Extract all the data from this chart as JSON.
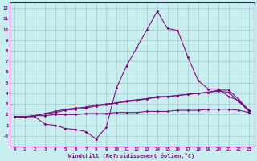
{
  "xlabel": "Windchill (Refroidissement éolien,°C)",
  "bg_color": "#c8eef0",
  "line_color": "#800080",
  "grid_color": "#a0c8d0",
  "xlim": [
    -0.5,
    23.5
  ],
  "ylim": [
    -1.0,
    12.5
  ],
  "xtick_labels": [
    "0",
    "1",
    "2",
    "3",
    "4",
    "5",
    "6",
    "7",
    "8",
    "9",
    "10",
    "11",
    "12",
    "13",
    "14",
    "15",
    "16",
    "17",
    "18",
    "19",
    "20",
    "21",
    "22",
    "23"
  ],
  "ytick_labels": [
    "-0",
    "1",
    "2",
    "3",
    "4",
    "5",
    "6",
    "7",
    "8",
    "9",
    "10",
    "11",
    "12"
  ],
  "ytick_vals": [
    0,
    1,
    2,
    3,
    4,
    5,
    6,
    7,
    8,
    9,
    10,
    11,
    12
  ],
  "series": [
    [
      1.8,
      1.8,
      1.8,
      1.1,
      1.0,
      0.7,
      0.6,
      0.4,
      -0.3,
      0.8,
      4.5,
      6.6,
      8.3,
      10.0,
      11.7,
      10.1,
      9.9,
      7.4,
      5.2,
      4.4,
      4.4,
      3.7,
      3.3,
      2.3
    ],
    [
      1.8,
      1.8,
      1.9,
      2.1,
      2.2,
      2.4,
      2.5,
      2.6,
      2.8,
      2.9,
      3.1,
      3.2,
      3.3,
      3.5,
      3.6,
      3.7,
      3.8,
      3.9,
      4.0,
      4.1,
      4.3,
      4.3,
      3.4,
      2.4
    ],
    [
      1.8,
      1.8,
      1.9,
      2.1,
      2.3,
      2.5,
      2.6,
      2.7,
      2.9,
      3.0,
      3.1,
      3.3,
      3.4,
      3.5,
      3.7,
      3.7,
      3.8,
      3.9,
      4.0,
      4.1,
      4.2,
      4.1,
      3.2,
      2.3
    ],
    [
      1.8,
      1.8,
      1.9,
      1.9,
      2.0,
      2.0,
      2.0,
      2.1,
      2.1,
      2.1,
      2.2,
      2.2,
      2.2,
      2.3,
      2.3,
      2.3,
      2.4,
      2.4,
      2.4,
      2.5,
      2.5,
      2.5,
      2.4,
      2.2
    ]
  ]
}
